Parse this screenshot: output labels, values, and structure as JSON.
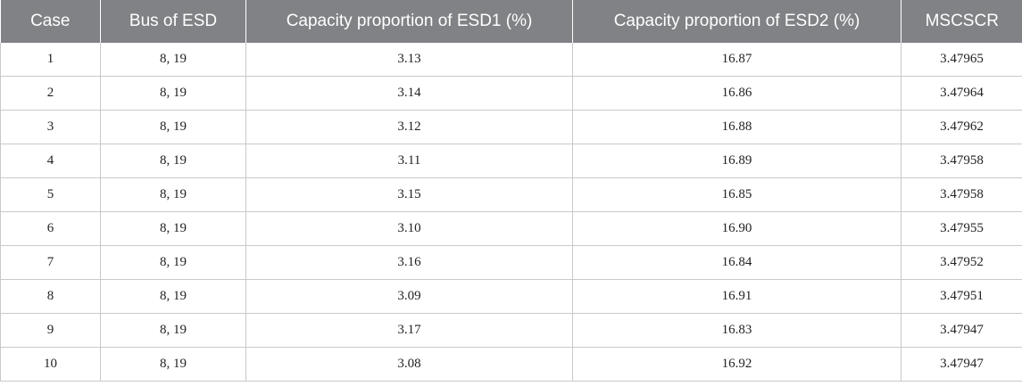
{
  "table": {
    "headers": [
      "Case",
      "Bus of ESD",
      "Capacity proportion of ESD1 (%)",
      "Capacity proportion of ESD2 (%)",
      "MSCSCR"
    ],
    "rows": [
      [
        "1",
        "8, 19",
        "3.13",
        "16.87",
        "3.47965"
      ],
      [
        "2",
        "8, 19",
        "3.14",
        "16.86",
        "3.47964"
      ],
      [
        "3",
        "8, 19",
        "3.12",
        "16.88",
        "3.47962"
      ],
      [
        "4",
        "8, 19",
        "3.11",
        "16.89",
        "3.47958"
      ],
      [
        "5",
        "8, 19",
        "3.15",
        "16.85",
        "3.47958"
      ],
      [
        "6",
        "8, 19",
        "3.10",
        "16.90",
        "3.47955"
      ],
      [
        "7",
        "8, 19",
        "3.16",
        "16.84",
        "3.47952"
      ],
      [
        "8",
        "8, 19",
        "3.09",
        "16.91",
        "3.47951"
      ],
      [
        "9",
        "8, 19",
        "3.17",
        "16.83",
        "3.47947"
      ],
      [
        "10",
        "8, 19",
        "3.08",
        "16.92",
        "3.47947"
      ]
    ]
  }
}
